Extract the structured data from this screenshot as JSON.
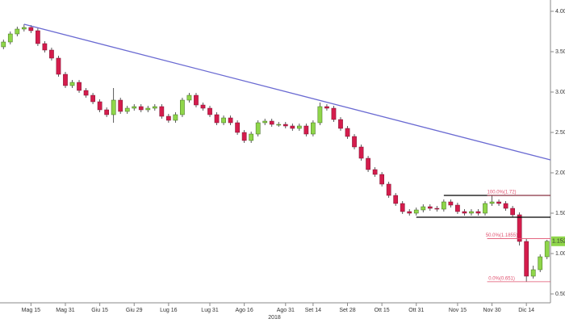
{
  "chart_data": {
    "type": "candlestick",
    "categories": [
      null,
      null,
      null,
      null,
      "Mag 15",
      null,
      null,
      null,
      null,
      "Mag 31",
      null,
      null,
      null,
      null,
      "Giu 15",
      null,
      null,
      null,
      null,
      "Giu 29",
      null,
      null,
      null,
      null,
      "Lug 16",
      null,
      null,
      null,
      null,
      null,
      "Lug 31",
      null,
      null,
      null,
      null,
      "Ago 16",
      null,
      null,
      null,
      null,
      null,
      "Ago 31",
      null,
      null,
      null,
      "Set 14",
      null,
      null,
      null,
      null,
      "Set 28",
      null,
      null,
      null,
      null,
      "Ott 15",
      null,
      null,
      null,
      null,
      "Ott 31",
      null,
      null,
      null,
      null,
      null,
      "Nov 15",
      null,
      null,
      null,
      null,
      "Nov 30",
      null,
      null,
      null,
      null,
      "Dic 14",
      null,
      null,
      null
    ],
    "xlabel": "2018",
    "open": [
      3.56,
      3.62,
      3.72,
      3.78,
      3.8,
      3.76,
      3.6,
      3.52,
      3.42,
      3.22,
      3.08,
      3.12,
      3.02,
      2.96,
      2.88,
      2.78,
      2.72,
      2.9,
      2.76,
      2.8,
      2.82,
      2.78,
      2.8,
      2.82,
      2.7,
      2.65,
      2.72,
      2.9,
      2.96,
      2.84,
      2.8,
      2.72,
      2.62,
      2.68,
      2.62,
      2.5,
      2.4,
      2.48,
      2.62,
      2.64,
      2.6,
      2.6,
      2.58,
      2.55,
      2.58,
      2.48,
      2.62,
      2.82,
      2.8,
      2.66,
      2.55,
      2.45,
      2.32,
      2.18,
      2.04,
      1.98,
      1.86,
      1.72,
      1.62,
      1.52,
      1.5,
      1.54,
      1.58,
      1.56,
      1.55,
      1.64,
      1.6,
      1.52,
      1.5,
      1.52,
      1.5,
      1.62,
      1.64,
      1.62,
      1.56,
      1.48,
      1.15,
      0.72,
      0.8,
      0.96
    ],
    "high": [
      3.65,
      3.75,
      3.81,
      3.84,
      3.83,
      3.79,
      3.63,
      3.55,
      3.45,
      3.25,
      3.15,
      3.15,
      3.05,
      2.99,
      2.91,
      2.81,
      3.05,
      2.93,
      2.83,
      2.85,
      2.85,
      2.83,
      2.85,
      2.85,
      2.73,
      2.75,
      2.93,
      2.99,
      2.99,
      2.87,
      2.83,
      2.75,
      2.71,
      2.71,
      2.65,
      2.53,
      2.51,
      2.65,
      2.67,
      2.67,
      2.63,
      2.63,
      2.61,
      2.61,
      2.61,
      2.65,
      2.87,
      2.85,
      2.83,
      2.69,
      2.58,
      2.48,
      2.35,
      2.21,
      2.07,
      2.01,
      1.89,
      1.75,
      1.65,
      1.55,
      1.57,
      1.61,
      1.61,
      1.59,
      1.67,
      1.67,
      1.63,
      1.55,
      1.55,
      1.55,
      1.65,
      1.72,
      1.67,
      1.65,
      1.59,
      1.51,
      1.18,
      0.85,
      0.99,
      1.17
    ],
    "low": [
      3.53,
      3.59,
      3.69,
      3.75,
      3.73,
      3.57,
      3.49,
      3.39,
      3.19,
      3.05,
      3.05,
      2.99,
      2.93,
      2.85,
      2.75,
      2.69,
      2.62,
      2.73,
      2.73,
      2.77,
      2.75,
      2.75,
      2.77,
      2.67,
      2.62,
      2.62,
      2.69,
      2.87,
      2.81,
      2.77,
      2.69,
      2.59,
      2.59,
      2.59,
      2.47,
      2.37,
      2.37,
      2.45,
      2.59,
      2.57,
      2.57,
      2.55,
      2.52,
      2.52,
      2.45,
      2.45,
      2.59,
      2.77,
      2.63,
      2.52,
      2.42,
      2.29,
      2.15,
      2.01,
      1.95,
      1.83,
      1.69,
      1.59,
      1.49,
      1.47,
      1.47,
      1.51,
      1.53,
      1.52,
      1.52,
      1.57,
      1.49,
      1.47,
      1.47,
      1.47,
      1.47,
      1.59,
      1.59,
      1.53,
      1.45,
      1.1,
      0.651,
      0.69,
      0.77,
      0.93
    ],
    "close": [
      3.62,
      3.72,
      3.78,
      3.8,
      3.76,
      3.6,
      3.52,
      3.42,
      3.22,
      3.08,
      3.12,
      3.02,
      2.96,
      2.88,
      2.78,
      2.72,
      2.9,
      2.76,
      2.8,
      2.82,
      2.78,
      2.8,
      2.82,
      2.7,
      2.65,
      2.72,
      2.9,
      2.96,
      2.84,
      2.8,
      2.72,
      2.62,
      2.68,
      2.62,
      2.5,
      2.4,
      2.48,
      2.62,
      2.64,
      2.6,
      2.6,
      2.58,
      2.55,
      2.58,
      2.48,
      2.62,
      2.82,
      2.8,
      2.66,
      2.55,
      2.45,
      2.32,
      2.18,
      2.04,
      1.98,
      1.86,
      1.72,
      1.62,
      1.52,
      1.5,
      1.54,
      1.58,
      1.56,
      1.55,
      1.64,
      1.6,
      1.52,
      1.5,
      1.52,
      1.5,
      1.62,
      1.64,
      1.62,
      1.56,
      1.48,
      1.15,
      0.72,
      0.8,
      0.96,
      1.152
    ],
    "last_label": "1.152",
    "up_color": "#8fd64a",
    "down_color": "#d41c4c",
    "ylim": [
      0.39,
      4.14
    ],
    "yticks": [
      {
        "value": 0.5,
        "label": "0.50"
      },
      {
        "value": 1,
        "label": "1.00"
      },
      {
        "value": 1.5,
        "label": "1.50"
      },
      {
        "value": 2,
        "label": "2.00"
      },
      {
        "value": 2.5,
        "label": "2.50"
      },
      {
        "value": 3,
        "label": "3.00"
      },
      {
        "value": 3.5,
        "label": "3.50"
      },
      {
        "value": 4,
        "label": "4.00"
      }
    ],
    "trendline": {
      "color": "#6a6ad2",
      "x": [
        3,
        79.5
      ],
      "y": [
        3.84,
        2.16
      ]
    },
    "levels": [
      {
        "value": 1.72,
        "from": 64,
        "color": "#000000"
      },
      {
        "value": 1.45,
        "from": 60,
        "color": "#000000"
      }
    ],
    "fib": {
      "color": "#e0506e",
      "from": 71,
      "lines": [
        {
          "value": 1.72,
          "label": "100.0%(1.72)"
        },
        {
          "value": 1.1855,
          "label": "50.0%(1.1855)"
        },
        {
          "value": 0.651,
          "label": "0.0%(0.651)"
        }
      ]
    }
  }
}
